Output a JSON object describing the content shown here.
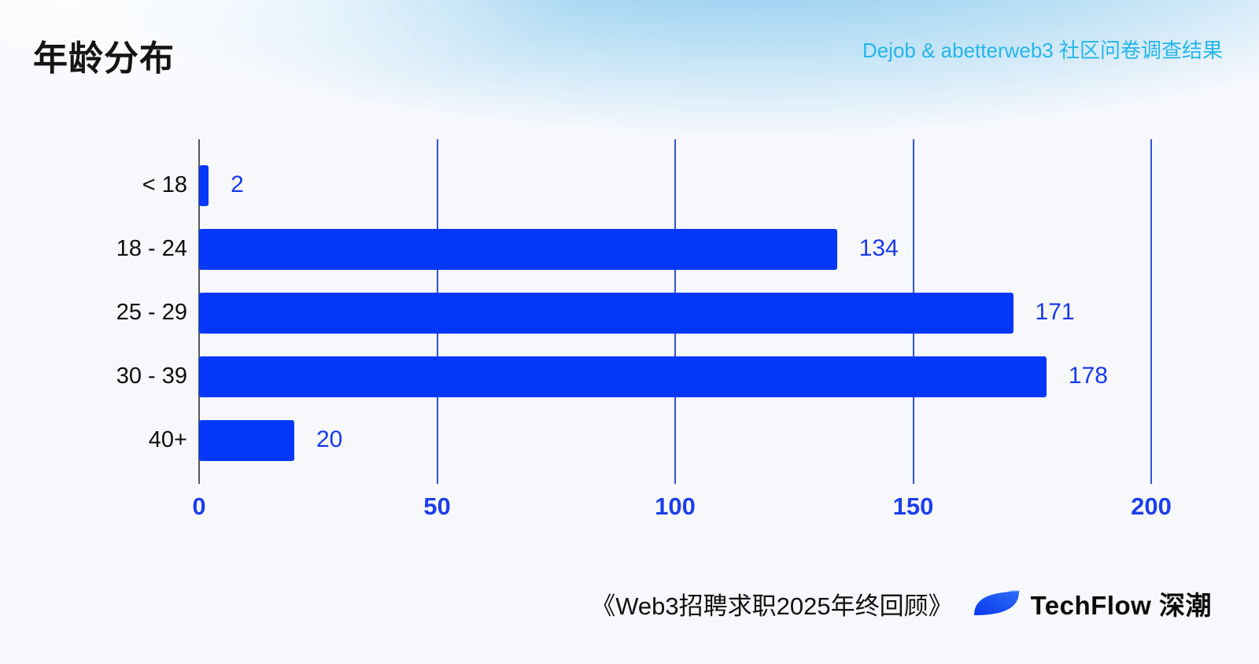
{
  "header": {
    "title": "年龄分布",
    "subtitle": "Dejob & abetterweb3 社区问卷调查结果"
  },
  "chart_data": {
    "type": "bar",
    "orientation": "horizontal",
    "title": "年龄分布",
    "categories": [
      "< 18",
      "18 - 24",
      "25 - 29",
      "30 - 39",
      "40+"
    ],
    "values": [
      2,
      134,
      171,
      178,
      20
    ],
    "x_ticks": [
      "0",
      "50",
      "100",
      "150",
      "200"
    ],
    "x_tick_values": [
      0,
      50,
      100,
      150,
      200
    ],
    "xlim": [
      0,
      200
    ],
    "grid": true,
    "value_labels_shown": true,
    "legend": "none"
  },
  "footer": {
    "source_text": "《Web3招聘求职2025年终回顾》",
    "brand_name": "TechFlow 深潮",
    "logo": "techflow-leaf-logo"
  },
  "colors": {
    "bar": "#0437fa",
    "value_label": "#1738f0",
    "tick_label": "#1c3eec",
    "grid_line": "#3352d9",
    "axis_line": "#55585c",
    "subtitle": "#24b6e9",
    "title_text": "#151515",
    "sky_gradient": "#76bbeb",
    "canvas": "#f6f8fc",
    "logo_main": "#0d43f2",
    "logo_accent": "#6da0f8"
  }
}
